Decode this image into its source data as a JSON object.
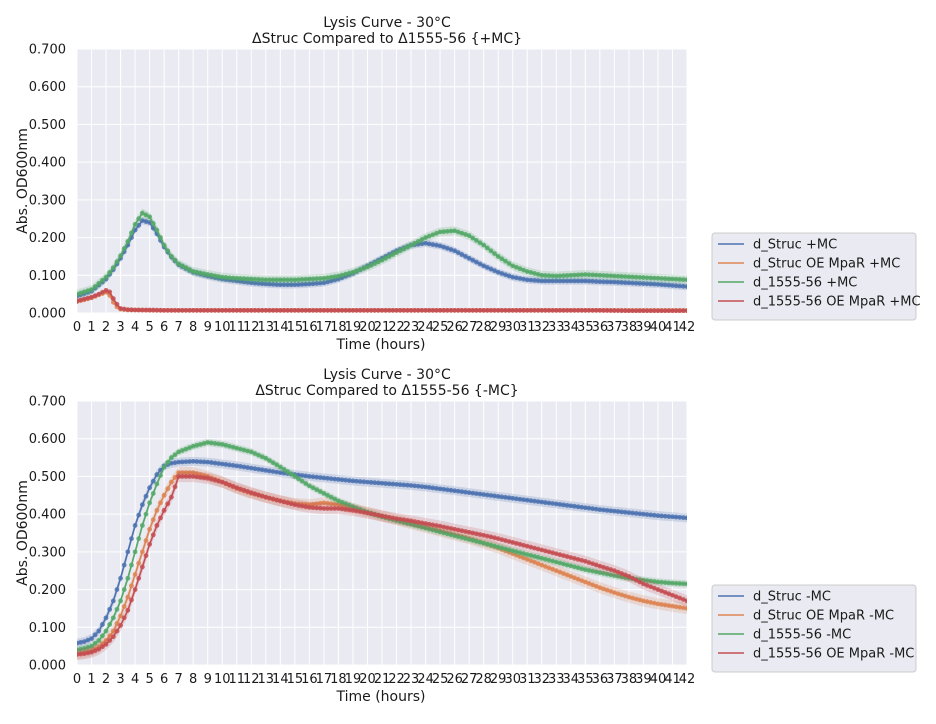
{
  "chart_data": [
    {
      "type": "line",
      "title": "Lysis Curve - 30°C",
      "subtitle": "ΔStruc Compared to Δ1555-56 {+MC}",
      "xlabel": "Time (hours)",
      "ylabel": "Abs. OD600nm",
      "xlim": [
        0,
        42
      ],
      "ylim": [
        0,
        0.7
      ],
      "yticks": [
        "0.000",
        "0.100",
        "0.200",
        "0.300",
        "0.400",
        "0.500",
        "0.600",
        "0.700"
      ],
      "xticks": [
        "0",
        "1",
        "2",
        "3",
        "4",
        "5",
        "6",
        "7",
        "8",
        "9",
        "10",
        "11",
        "12",
        "13",
        "14",
        "15",
        "16",
        "17",
        "18",
        "19",
        "20",
        "21",
        "22",
        "23",
        "24",
        "25",
        "26",
        "27",
        "28",
        "29",
        "30",
        "31",
        "32",
        "33",
        "34",
        "35",
        "36",
        "37",
        "38",
        "39",
        "40",
        "41",
        "42"
      ],
      "legend_position": "right",
      "series": [
        {
          "name": "d_Struc +MC",
          "color": "#4c72b0",
          "x": [
            0,
            1,
            2,
            2.5,
            3,
            3.5,
            4,
            4.5,
            5,
            5.5,
            6,
            6.5,
            7,
            8,
            9,
            10,
            11,
            12,
            13,
            14,
            15,
            16,
            17,
            18,
            19,
            20,
            21,
            22,
            23,
            24,
            25,
            26,
            27,
            28,
            29,
            30,
            31,
            32,
            33,
            34,
            35,
            36,
            37,
            38,
            39,
            40,
            41,
            42
          ],
          "y": [
            0.045,
            0.058,
            0.09,
            0.115,
            0.145,
            0.18,
            0.22,
            0.245,
            0.24,
            0.21,
            0.175,
            0.148,
            0.128,
            0.108,
            0.098,
            0.09,
            0.085,
            0.08,
            0.077,
            0.075,
            0.075,
            0.077,
            0.08,
            0.09,
            0.105,
            0.125,
            0.145,
            0.165,
            0.18,
            0.185,
            0.178,
            0.165,
            0.145,
            0.125,
            0.108,
            0.095,
            0.088,
            0.085,
            0.085,
            0.085,
            0.085,
            0.083,
            0.082,
            0.08,
            0.078,
            0.076,
            0.073,
            0.07
          ],
          "band": 0.01
        },
        {
          "name": "d_Struc OE MpaR +MC",
          "color": "#dd8452",
          "x": [
            0,
            1,
            1.5,
            2,
            2.3,
            2.6,
            3,
            3.5,
            4,
            5,
            6,
            8,
            10,
            12,
            14,
            16,
            18,
            20,
            22,
            24,
            26,
            28,
            30,
            32,
            34,
            36,
            38,
            40,
            42
          ],
          "y": [
            0.03,
            0.04,
            0.048,
            0.055,
            0.045,
            0.02,
            0.01,
            0.008,
            0.008,
            0.007,
            0.007,
            0.007,
            0.007,
            0.007,
            0.007,
            0.007,
            0.007,
            0.007,
            0.007,
            0.007,
            0.007,
            0.007,
            0.007,
            0.007,
            0.007,
            0.007,
            0.007,
            0.007,
            0.007
          ],
          "band": 0.004
        },
        {
          "name": "d_1555-56  +MC",
          "color": "#55a868",
          "x": [
            0,
            1,
            2,
            2.5,
            3,
            3.5,
            4,
            4.5,
            5,
            5.5,
            6,
            6.5,
            7,
            8,
            9,
            10,
            11,
            12,
            13,
            14,
            15,
            16,
            17,
            18,
            19,
            20,
            21,
            22,
            23,
            24,
            25,
            26,
            27,
            28,
            29,
            30,
            31,
            32,
            33,
            34,
            35,
            36,
            37,
            38,
            39,
            40,
            41,
            42
          ],
          "y": [
            0.05,
            0.062,
            0.095,
            0.12,
            0.152,
            0.19,
            0.235,
            0.265,
            0.255,
            0.22,
            0.18,
            0.15,
            0.13,
            0.11,
            0.102,
            0.095,
            0.092,
            0.09,
            0.088,
            0.088,
            0.088,
            0.09,
            0.092,
            0.098,
            0.108,
            0.122,
            0.14,
            0.16,
            0.18,
            0.2,
            0.215,
            0.218,
            0.205,
            0.18,
            0.15,
            0.125,
            0.11,
            0.1,
            0.098,
            0.1,
            0.102,
            0.1,
            0.098,
            0.096,
            0.094,
            0.092,
            0.09,
            0.088
          ],
          "band": 0.012
        },
        {
          "name": "d_1555-56 OE MpaR +MC",
          "color": "#c44e52",
          "x": [
            0,
            1,
            1.5,
            2,
            2.3,
            2.6,
            3,
            3.5,
            4,
            5,
            6,
            8,
            10,
            12,
            14,
            16,
            18,
            20,
            22,
            24,
            26,
            28,
            30,
            32,
            34,
            36,
            38,
            40,
            42
          ],
          "y": [
            0.032,
            0.042,
            0.05,
            0.06,
            0.055,
            0.03,
            0.012,
            0.009,
            0.008,
            0.008,
            0.007,
            0.007,
            0.007,
            0.007,
            0.007,
            0.007,
            0.007,
            0.007,
            0.007,
            0.007,
            0.007,
            0.007,
            0.007,
            0.007,
            0.007,
            0.007,
            0.006,
            0.006,
            0.006
          ],
          "band": 0.004
        }
      ]
    },
    {
      "type": "line",
      "title": "Lysis Curve - 30°C",
      "subtitle": "ΔStruc Compared to Δ1555-56 {-MC}",
      "xlabel": "Time (hours)",
      "ylabel": "Abs. OD600nm",
      "xlim": [
        0,
        42
      ],
      "ylim": [
        0,
        0.7
      ],
      "yticks": [
        "0.000",
        "0.100",
        "0.200",
        "0.300",
        "0.400",
        "0.500",
        "0.600",
        "0.700"
      ],
      "xticks": [
        "0",
        "1",
        "2",
        "3",
        "4",
        "5",
        "6",
        "7",
        "8",
        "9",
        "10",
        "11",
        "12",
        "13",
        "14",
        "15",
        "16",
        "17",
        "18",
        "19",
        "20",
        "21",
        "22",
        "23",
        "24",
        "25",
        "26",
        "27",
        "28",
        "29",
        "30",
        "31",
        "32",
        "33",
        "34",
        "35",
        "36",
        "37",
        "38",
        "39",
        "40",
        "41",
        "42"
      ],
      "legend_position": "right",
      "series": [
        {
          "name": "d_Struc -MC",
          "color": "#4c72b0",
          "x": [
            0,
            0.5,
            1,
            1.5,
            2,
            2.5,
            3,
            3.5,
            4,
            4.5,
            5,
            5.5,
            6,
            6.5,
            7,
            8,
            9,
            10,
            11,
            12,
            13,
            14,
            15,
            16,
            17,
            18,
            19,
            20,
            21,
            22,
            23,
            24,
            25,
            26,
            27,
            28,
            29,
            30,
            31,
            32,
            33,
            34,
            35,
            36,
            37,
            38,
            39,
            40,
            41,
            42
          ],
          "y": [
            0.058,
            0.062,
            0.07,
            0.09,
            0.125,
            0.17,
            0.23,
            0.3,
            0.37,
            0.425,
            0.47,
            0.505,
            0.528,
            0.535,
            0.538,
            0.54,
            0.538,
            0.533,
            0.528,
            0.522,
            0.516,
            0.51,
            0.505,
            0.5,
            0.496,
            0.492,
            0.488,
            0.485,
            0.482,
            0.479,
            0.476,
            0.472,
            0.467,
            0.462,
            0.457,
            0.452,
            0.447,
            0.442,
            0.437,
            0.432,
            0.427,
            0.422,
            0.417,
            0.412,
            0.408,
            0.404,
            0.4,
            0.396,
            0.393,
            0.39
          ],
          "band": 0.012
        },
        {
          "name": "d_Struc OE MpaR -MC",
          "color": "#dd8452",
          "x": [
            0,
            0.5,
            1,
            1.5,
            2,
            2.5,
            3,
            3.5,
            4,
            4.5,
            5,
            5.5,
            6,
            6.5,
            7,
            8,
            9,
            10,
            11,
            12,
            13,
            14,
            15,
            16,
            17,
            18,
            19,
            20,
            21,
            22,
            23,
            24,
            25,
            26,
            27,
            28,
            29,
            30,
            31,
            32,
            33,
            34,
            35,
            36,
            37,
            38,
            39,
            40,
            41,
            42
          ],
          "y": [
            0.03,
            0.033,
            0.038,
            0.048,
            0.065,
            0.09,
            0.13,
            0.18,
            0.24,
            0.3,
            0.36,
            0.41,
            0.45,
            0.485,
            0.51,
            0.51,
            0.5,
            0.485,
            0.468,
            0.455,
            0.445,
            0.435,
            0.428,
            0.425,
            0.43,
            0.425,
            0.415,
            0.405,
            0.395,
            0.385,
            0.375,
            0.365,
            0.355,
            0.345,
            0.335,
            0.323,
            0.31,
            0.295,
            0.28,
            0.265,
            0.25,
            0.235,
            0.22,
            0.205,
            0.192,
            0.18,
            0.17,
            0.162,
            0.156,
            0.15
          ],
          "band": 0.015
        },
        {
          "name": "d_1555-56  -MC",
          "color": "#55a868",
          "x": [
            0,
            0.5,
            1,
            1.5,
            2,
            2.5,
            3,
            3.5,
            4,
            4.5,
            5,
            5.5,
            6,
            6.5,
            7,
            8,
            9,
            10,
            11,
            12,
            13,
            14,
            15,
            16,
            17,
            18,
            19,
            20,
            21,
            22,
            23,
            24,
            25,
            26,
            27,
            28,
            29,
            30,
            31,
            32,
            33,
            34,
            35,
            36,
            37,
            38,
            39,
            40,
            41,
            42
          ],
          "y": [
            0.04,
            0.044,
            0.05,
            0.065,
            0.09,
            0.125,
            0.17,
            0.23,
            0.3,
            0.37,
            0.43,
            0.48,
            0.525,
            0.55,
            0.565,
            0.58,
            0.59,
            0.585,
            0.575,
            0.565,
            0.548,
            0.525,
            0.5,
            0.475,
            0.455,
            0.435,
            0.42,
            0.405,
            0.393,
            0.383,
            0.373,
            0.363,
            0.353,
            0.343,
            0.333,
            0.323,
            0.313,
            0.303,
            0.293,
            0.283,
            0.273,
            0.263,
            0.253,
            0.245,
            0.237,
            0.23,
            0.225,
            0.22,
            0.217,
            0.215
          ],
          "band": 0.01
        },
        {
          "name": "d_1555-56 OE MpaR -MC",
          "color": "#c44e52",
          "x": [
            0,
            0.5,
            1,
            1.5,
            2,
            2.5,
            3,
            3.5,
            4,
            4.5,
            5,
            5.5,
            6,
            6.5,
            7,
            8,
            9,
            10,
            11,
            12,
            13,
            14,
            15,
            16,
            17,
            18,
            19,
            20,
            21,
            22,
            23,
            24,
            25,
            26,
            27,
            28,
            29,
            30,
            31,
            32,
            33,
            34,
            35,
            36,
            37,
            38,
            39,
            40,
            41,
            42
          ],
          "y": [
            0.028,
            0.03,
            0.034,
            0.042,
            0.055,
            0.075,
            0.105,
            0.145,
            0.2,
            0.26,
            0.32,
            0.37,
            0.41,
            0.445,
            0.5,
            0.5,
            0.495,
            0.485,
            0.47,
            0.457,
            0.445,
            0.435,
            0.425,
            0.418,
            0.415,
            0.415,
            0.41,
            0.403,
            0.395,
            0.388,
            0.382,
            0.375,
            0.368,
            0.36,
            0.352,
            0.344,
            0.335,
            0.325,
            0.315,
            0.305,
            0.295,
            0.285,
            0.275,
            0.262,
            0.25,
            0.235,
            0.215,
            0.2,
            0.185,
            0.17
          ],
          "band": 0.015
        }
      ]
    }
  ]
}
